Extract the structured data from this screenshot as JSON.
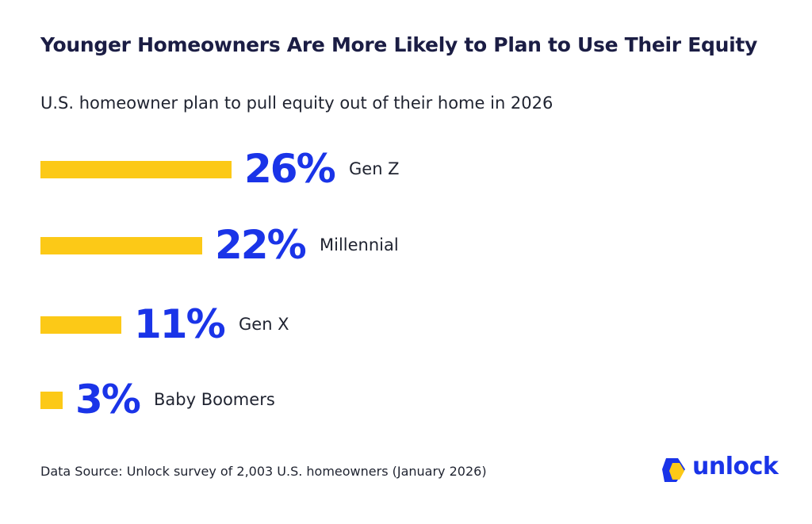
{
  "title": "Younger Homeowners Are More Likely to Plan to Use Their Equity",
  "subtitle": "U.S. homeowner plan to pull equity out of their home in 2026",
  "source": "Data Source: Unlock survey of 2,003 U.S. homeowners (January 2026)",
  "brand": "unlock",
  "colors": {
    "bar": "#fcc917",
    "value": "#1a34e8",
    "title": "#1b1d44",
    "logo_blue": "#1a34e8",
    "logo_yellow": "#fcc917"
  },
  "chart_data": {
    "type": "bar",
    "orientation": "horizontal",
    "title": "Younger Homeowners Are More Likely to Plan to Use Their Equity",
    "subtitle": "U.S. homeowner plan to pull equity out of their home in 2026",
    "categories": [
      "Gen Z",
      "Millennial",
      "Gen X",
      "Baby Boomers"
    ],
    "values": [
      26,
      22,
      11,
      3
    ],
    "labels": [
      "26%",
      "22%",
      "11%",
      "3%"
    ],
    "unit": "%",
    "grid": false,
    "legend": "none"
  }
}
